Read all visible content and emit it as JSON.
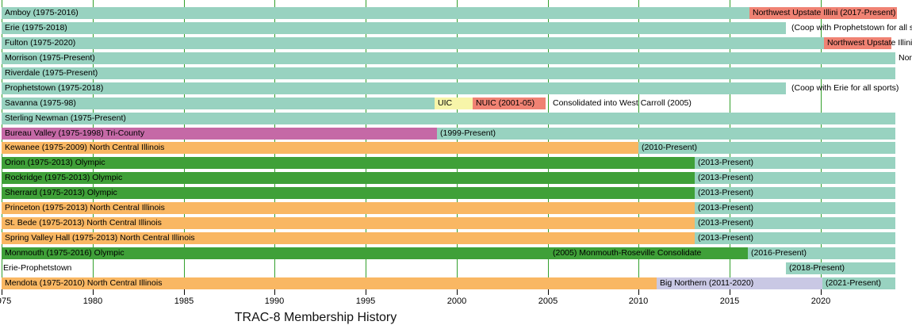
{
  "colors": {
    "teal": "#98D2C0",
    "salmon": "#F08273",
    "yellow": "#F7F5A9",
    "pink": "#C569A6",
    "orange": "#F9B763",
    "green": "#3FA038",
    "lavender": "#C9C8E4",
    "gridline": "#33A02C",
    "tick": "#000000",
    "text": "#000000",
    "background": "#FFFFFF"
  },
  "chart_data": {
    "type": "bar",
    "subtype": "horizontal-gantt-timeline",
    "title": "TRAC-8 Membership History",
    "xlabel": "",
    "ylabel": "",
    "x_range": [
      1975,
      2025
    ],
    "x_ticks": [
      1975,
      1980,
      1985,
      1990,
      1995,
      2000,
      2005,
      2010,
      2015,
      2020
    ],
    "x_tick_labels": [
      "1975",
      "1980",
      "1985",
      "1990",
      "1995",
      "2000",
      "2005",
      "2010",
      "2015",
      "2020"
    ],
    "grid": "vertical-green-5yr",
    "legend": "none",
    "rows": [
      {
        "name": "amboy",
        "bars": [
          {
            "start": 1975,
            "end": 2016.1,
            "color": "teal",
            "label": "Amboy (1975-2016)"
          },
          {
            "start": 2016.1,
            "end": 2024.2,
            "color": "salmon",
            "label": "Northwest Upstate Illini (2017-Present)"
          }
        ],
        "notes": []
      },
      {
        "name": "erie",
        "bars": [
          {
            "start": 1975,
            "end": 2018.1,
            "color": "teal",
            "label": "Erie (1975-2018)"
          }
        ],
        "notes": [
          {
            "x": 2018.4,
            "text": "(Coop with Prophetstown for all sports)"
          }
        ]
      },
      {
        "name": "fulton",
        "bars": [
          {
            "start": 1975,
            "end": 2020.2,
            "color": "teal",
            "label": "Fulton (1975-2020)"
          },
          {
            "start": 2020.2,
            "end": 2023.9,
            "color": "salmon",
            "label": "Northwest Upstate Illini"
          }
        ],
        "notes": []
      },
      {
        "name": "morrison",
        "bars": [
          {
            "start": 1975,
            "end": 2024.1,
            "color": "teal",
            "label": "Morrison (1975-Present)"
          }
        ],
        "notes": [
          {
            "x": 2024.3,
            "text": "Northwest Upstate Illini"
          }
        ]
      },
      {
        "name": "riverdale",
        "bars": [
          {
            "start": 1975,
            "end": 2024.1,
            "color": "teal",
            "label": "Riverdale (1975-Present)"
          }
        ],
        "notes": []
      },
      {
        "name": "prophetstown",
        "bars": [
          {
            "start": 1975,
            "end": 2018.1,
            "color": "teal",
            "label": "Prophetstown (1975-2018)"
          }
        ],
        "notes": [
          {
            "x": 2018.4,
            "text": "(Coop with Erie for all sports)"
          }
        ]
      },
      {
        "name": "savanna",
        "bars": [
          {
            "start": 1975,
            "end": 1998.8,
            "color": "teal",
            "label": "Savanna (1975-98)"
          },
          {
            "start": 1998.8,
            "end": 2000.9,
            "color": "yellow",
            "label": "UIC"
          },
          {
            "start": 2000.9,
            "end": 2004.9,
            "color": "salmon",
            "label": "NUIC (2001-05)"
          }
        ],
        "notes": [
          {
            "x": 2005.3,
            "text": "Consolidated into West Carroll (2005)"
          }
        ]
      },
      {
        "name": "sterling-newman",
        "bars": [
          {
            "start": 1975,
            "end": 2024.1,
            "color": "teal",
            "label": "Sterling Newman (1975-Present)"
          }
        ],
        "notes": []
      },
      {
        "name": "bureau-valley",
        "bars": [
          {
            "start": 1975,
            "end": 1998.9,
            "color": "pink",
            "label": "Bureau Valley (1975-1998) Tri-County"
          },
          {
            "start": 1998.9,
            "end": 2024.1,
            "color": "teal",
            "label": "(1999-Present)"
          }
        ],
        "notes": []
      },
      {
        "name": "kewanee",
        "bars": [
          {
            "start": 1975,
            "end": 2010.0,
            "color": "orange",
            "label": "Kewanee (1975-2009) North Central Illinois"
          },
          {
            "start": 2010.0,
            "end": 2024.1,
            "color": "teal",
            "label": "(2010-Present)"
          }
        ],
        "notes": []
      },
      {
        "name": "orion",
        "bars": [
          {
            "start": 1975,
            "end": 2013.1,
            "color": "green",
            "label": "Orion (1975-2013) Olympic"
          },
          {
            "start": 2013.1,
            "end": 2024.1,
            "color": "teal",
            "label": "(2013-Present)"
          }
        ],
        "notes": []
      },
      {
        "name": "rockridge",
        "bars": [
          {
            "start": 1975,
            "end": 2013.1,
            "color": "green",
            "label": "Rockridge (1975-2013) Olympic"
          },
          {
            "start": 2013.1,
            "end": 2024.1,
            "color": "teal",
            "label": "(2013-Present)"
          }
        ],
        "notes": []
      },
      {
        "name": "sherrard",
        "bars": [
          {
            "start": 1975,
            "end": 2013.1,
            "color": "green",
            "label": "Sherrard (1975-2013) Olympic"
          },
          {
            "start": 2013.1,
            "end": 2024.1,
            "color": "teal",
            "label": "(2013-Present)"
          }
        ],
        "notes": []
      },
      {
        "name": "princeton",
        "bars": [
          {
            "start": 1975,
            "end": 2013.1,
            "color": "orange",
            "label": "Princeton (1975-2013) North Central Illinois"
          },
          {
            "start": 2013.1,
            "end": 2024.1,
            "color": "teal",
            "label": "(2013-Present)"
          }
        ],
        "notes": []
      },
      {
        "name": "st-bede",
        "bars": [
          {
            "start": 1975,
            "end": 2013.1,
            "color": "orange",
            "label": "St. Bede (1975-2013) North Central Illinois"
          },
          {
            "start": 2013.1,
            "end": 2024.1,
            "color": "teal",
            "label": "(2013-Present)"
          }
        ],
        "notes": []
      },
      {
        "name": "spring-valley-hall",
        "bars": [
          {
            "start": 1975,
            "end": 2013.1,
            "color": "orange",
            "label": "Spring Valley Hall (1975-2013) North Central Illinois"
          },
          {
            "start": 2013.1,
            "end": 2024.1,
            "color": "teal",
            "label": "(2013-Present)"
          }
        ],
        "notes": []
      },
      {
        "name": "monmouth",
        "bars": [
          {
            "start": 1975,
            "end": 2016.0,
            "color": "green",
            "label": "Monmouth (1975-2016) Olympic"
          },
          {
            "start": 2016.0,
            "end": 2024.1,
            "color": "teal",
            "label": "(2016-Present)"
          }
        ],
        "notes": [
          {
            "x": 2005.3,
            "text": "(2005) Monmouth-Roseville Consolidate"
          }
        ]
      },
      {
        "name": "erie-prophetstown",
        "bars": [
          {
            "start": 2018.1,
            "end": 2024.1,
            "color": "teal",
            "label": "(2018-Present)"
          }
        ],
        "notes": [
          {
            "x": 1975.1,
            "text": "Erie-Prophetstown"
          }
        ]
      },
      {
        "name": "mendota",
        "bars": [
          {
            "start": 1975,
            "end": 2011.0,
            "color": "orange",
            "label": "Mendota (1975-2010) North Central Illinois"
          },
          {
            "start": 2011.0,
            "end": 2020.1,
            "color": "lavender",
            "label": "Big Northern (2011-2020)"
          },
          {
            "start": 2020.1,
            "end": 2024.1,
            "color": "teal",
            "label": "(2021-Present)"
          }
        ],
        "notes": []
      }
    ]
  }
}
